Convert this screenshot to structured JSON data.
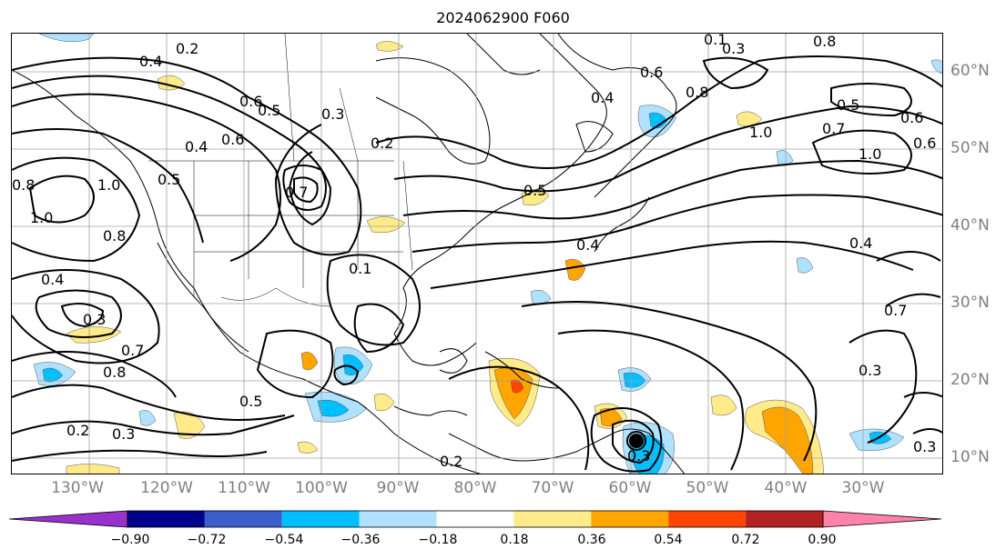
{
  "title": "2024062900 F060",
  "lon_labels": [
    "130°W",
    "120°W",
    "110°W",
    "100°W",
    "90°W",
    "80°W",
    "70°W",
    "60°W",
    "50°W",
    "40°W",
    "30°W"
  ],
  "lat_labels": [
    "60°N",
    "50°N",
    "40°N",
    "30°N",
    "20°N",
    "10°N"
  ],
  "colorbar": {
    "ticks": [
      "−0.90",
      "−0.72",
      "−0.54",
      "−0.36",
      "−0.18",
      "0.18",
      "0.36",
      "0.54",
      "0.72",
      "0.90"
    ],
    "colors": [
      "#9932cc",
      "#00008b",
      "#3a5fcd",
      "#00bfff",
      "#b0e2ff",
      "#ffffff",
      "#ffeb8a",
      "#ffa500",
      "#ff4500",
      "#b22222",
      "#ff82ab"
    ]
  },
  "contour_labels": [
    "0.2",
    "0.4",
    "0.6",
    "0.8",
    "1.0",
    "0.3",
    "0.5",
    "0.7",
    "0.6",
    "0.4",
    "0.2",
    "0.8",
    "1.0",
    "0.5",
    "0.4",
    "0.3",
    "0.2",
    "0.5",
    "0.8",
    "0.7",
    "0.3",
    "0.1",
    "0.5",
    "0.6",
    "0.4",
    "0.3",
    "0.7",
    "0.8",
    "0.6",
    "1.0",
    "0.4",
    "0.5",
    "1.0",
    "0.6",
    "0.2",
    "0.3",
    "0.4",
    "0.3",
    "0.3",
    "0.7",
    "0.1",
    "0.8"
  ]
}
